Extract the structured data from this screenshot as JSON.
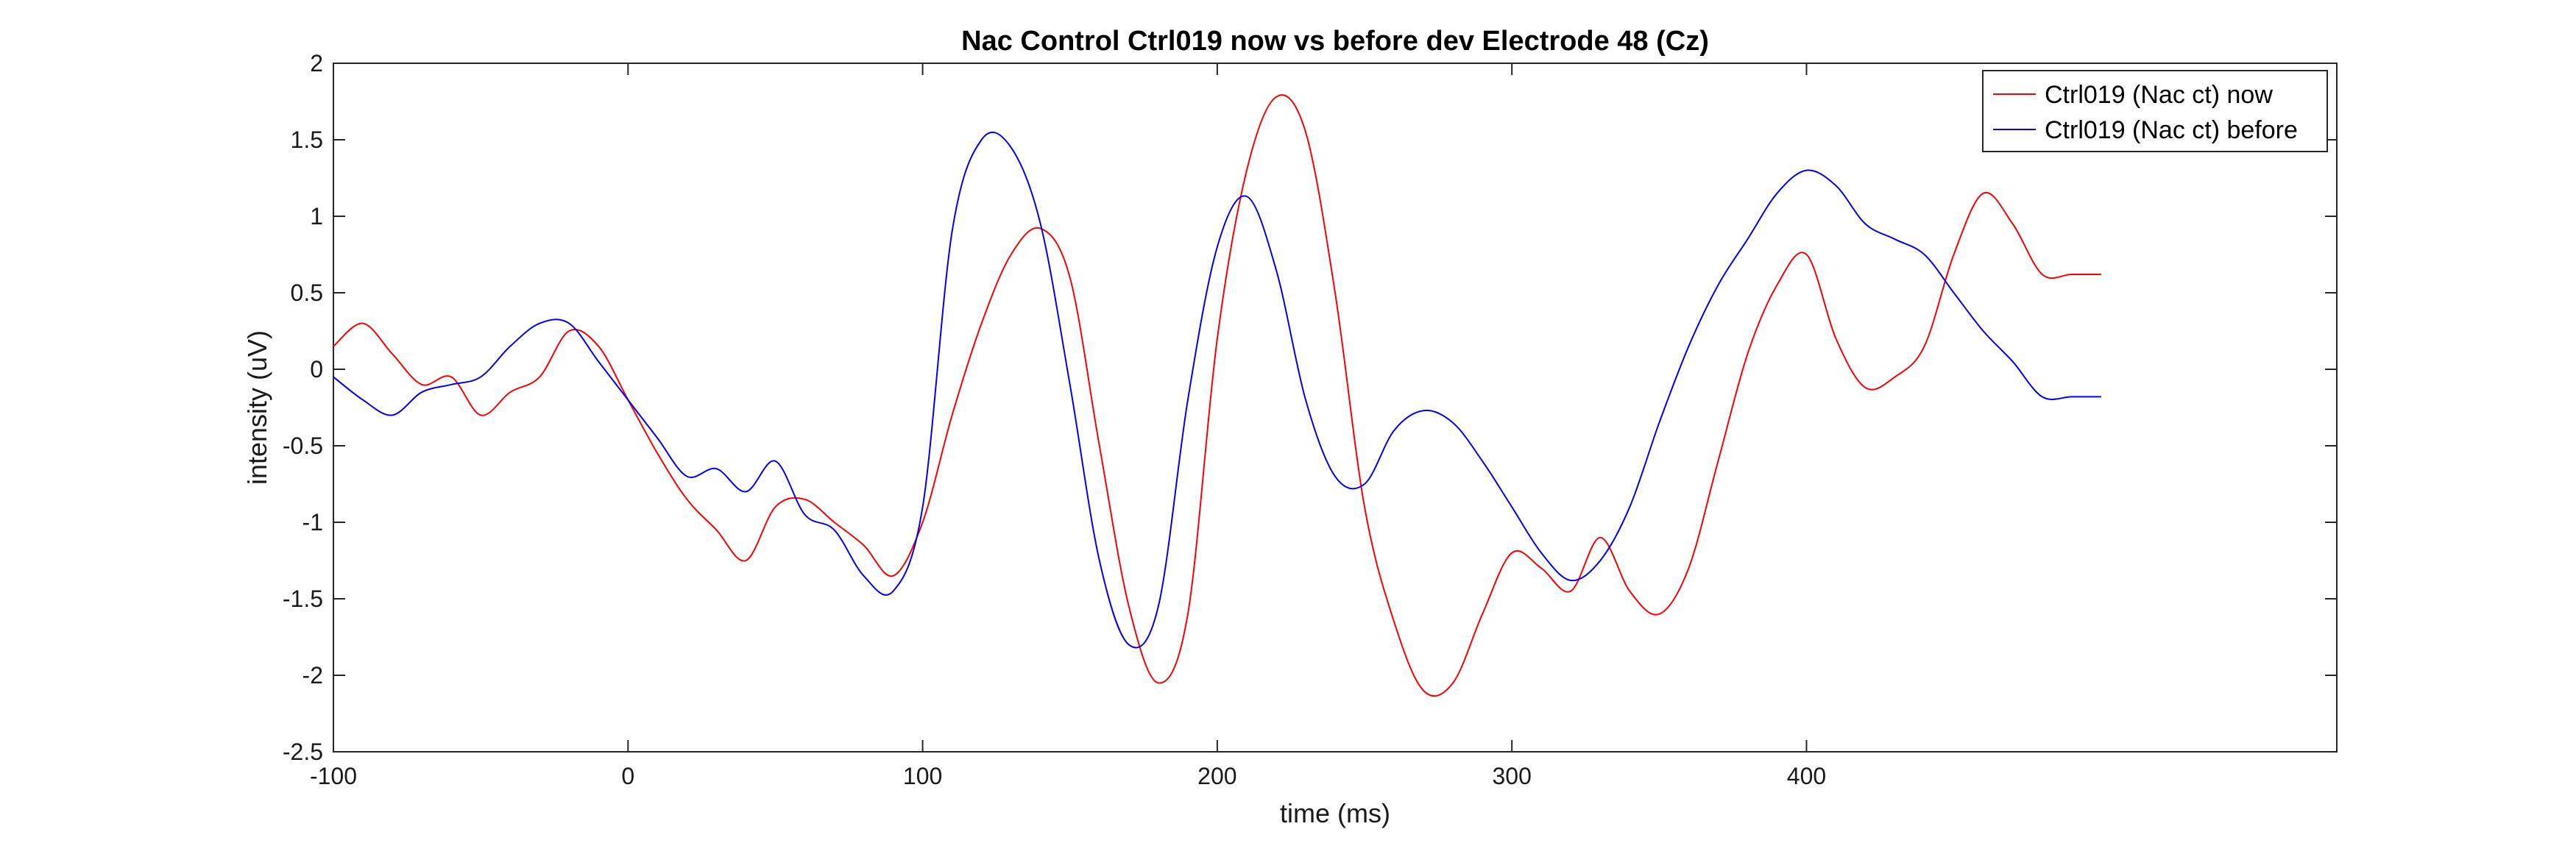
{
  "chart_data": {
    "type": "line",
    "title": "Nac Control Ctrl019 now vs before dev Electrode 48 (Cz)",
    "xlabel": "time (ms)",
    "ylabel": "intensity (uV)",
    "xlim": [
      -100,
      580
    ],
    "ylim": [
      -2.5,
      2
    ],
    "xticks": [
      -100,
      0,
      100,
      200,
      300,
      400
    ],
    "xtick_labels": [
      "-100",
      "0",
      "100",
      "200",
      "300",
      "400"
    ],
    "yticks": [
      2,
      1.5,
      1,
      0.5,
      0,
      -0.5,
      -1,
      -1.5,
      -2,
      -2.5
    ],
    "ytick_labels": [
      "2",
      "1.5",
      "1",
      "0.5",
      "0",
      "-0.5",
      "-1",
      "-1.5",
      "-2",
      "-2.5"
    ],
    "grid": false,
    "legend_position": "top-right",
    "series": [
      {
        "name": "Ctrl019 (Nac ct) now",
        "color": "#ff0000",
        "x": [
          -100,
          -90,
          -80,
          -70,
          -60,
          -50,
          -40,
          -30,
          -20,
          -10,
          0,
          10,
          20,
          30,
          40,
          50,
          60,
          70,
          80,
          90,
          100,
          110,
          120,
          130,
          140,
          150,
          160,
          170,
          180,
          190,
          200,
          210,
          220,
          230,
          240,
          250,
          260,
          270,
          280,
          290,
          300,
          310,
          320,
          330,
          340,
          350,
          360,
          370,
          380,
          390,
          400,
          410,
          420,
          430,
          440,
          450,
          460,
          470,
          480,
          490,
          500
        ],
        "y": [
          0.15,
          0.3,
          0.1,
          -0.1,
          -0.05,
          -0.3,
          -0.15,
          -0.05,
          0.25,
          0.15,
          -0.2,
          -0.55,
          -0.85,
          -1.05,
          -1.25,
          -0.9,
          -0.85,
          -1.0,
          -1.15,
          -1.35,
          -1.0,
          -0.3,
          0.3,
          0.75,
          0.92,
          0.6,
          -0.5,
          -1.55,
          -2.05,
          -1.6,
          0.2,
          1.3,
          1.78,
          1.55,
          0.5,
          -0.9,
          -1.65,
          -2.1,
          -2.05,
          -1.6,
          -1.2,
          -1.3,
          -1.45,
          -1.1,
          -1.45,
          -1.6,
          -1.3,
          -0.6,
          0.1,
          0.55,
          0.75,
          0.2,
          -0.12,
          -0.05,
          0.15,
          0.75,
          1.15,
          0.95,
          0.62,
          0.62,
          0.62
        ]
      },
      {
        "name": "Ctrl019 (Nac ct) before",
        "color": "#0000ff",
        "x": [
          -100,
          -90,
          -80,
          -70,
          -60,
          -50,
          -40,
          -30,
          -20,
          -10,
          0,
          10,
          20,
          30,
          40,
          50,
          60,
          70,
          80,
          90,
          100,
          110,
          120,
          130,
          140,
          150,
          160,
          170,
          180,
          190,
          200,
          210,
          220,
          230,
          240,
          250,
          260,
          270,
          280,
          290,
          300,
          310,
          320,
          330,
          340,
          350,
          360,
          370,
          380,
          390,
          400,
          410,
          420,
          430,
          440,
          450,
          460,
          470,
          480,
          490,
          500
        ],
        "y": [
          -0.05,
          -0.2,
          -0.3,
          -0.15,
          -0.1,
          -0.05,
          0.15,
          0.3,
          0.3,
          0.05,
          -0.2,
          -0.45,
          -0.7,
          -0.65,
          -0.8,
          -0.6,
          -0.95,
          -1.05,
          -1.35,
          -1.45,
          -0.9,
          0.9,
          1.5,
          1.45,
          0.95,
          -0.1,
          -1.25,
          -1.8,
          -1.55,
          -0.2,
          0.8,
          1.13,
          0.65,
          -0.2,
          -0.7,
          -0.75,
          -0.4,
          -0.27,
          -0.35,
          -0.6,
          -0.9,
          -1.2,
          -1.38,
          -1.25,
          -0.9,
          -0.35,
          0.15,
          0.55,
          0.85,
          1.15,
          1.3,
          1.2,
          0.95,
          0.85,
          0.75,
          0.5,
          0.25,
          0.05,
          -0.18,
          -0.18,
          -0.18
        ]
      }
    ]
  }
}
